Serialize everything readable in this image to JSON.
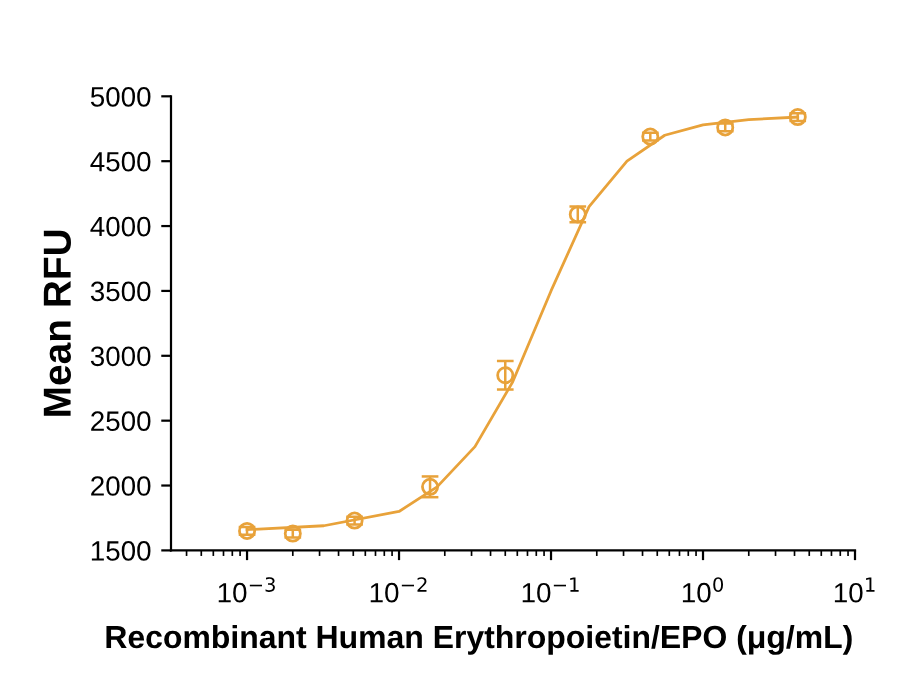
{
  "chart_data": {
    "type": "scatter",
    "xlabel": "Recombinant Human Erythropoietin/EPO (μg/mL)",
    "ylabel": "Mean RFU",
    "log": "x",
    "xlim": [
      0.000316,
      10
    ],
    "ylim": [
      1500,
      5000
    ],
    "xticks": [
      {
        "value": 0.001,
        "label": "10$^{−3}$"
      },
      {
        "value": 0.01,
        "label": "10$^{−2}$"
      },
      {
        "value": 0.1,
        "label": "10$^{−1}$"
      },
      {
        "value": 1,
        "label": "10$^{0}$"
      },
      {
        "value": 10,
        "label": "10$^{1}$"
      }
    ],
    "yticks": [
      1500,
      2000,
      2500,
      3000,
      3500,
      4000,
      4500,
      5000
    ],
    "grid": false,
    "series": [
      {
        "color": "#e8a23a",
        "marker": "circle",
        "x": [
          0.001,
          0.002,
          0.0051,
          0.016,
          0.05,
          0.15,
          0.45,
          1.4,
          4.2
        ],
        "values": [
          1650,
          1630,
          1730,
          1990,
          2850,
          4090,
          4690,
          4760,
          4840
        ],
        "errors": [
          30,
          30,
          30,
          80,
          110,
          60,
          30,
          30,
          30
        ]
      },
      {
        "type": "line",
        "color": "#e8a23a",
        "marker": "none",
        "line_style": "solid",
        "x": [
          0.001,
          0.0032,
          0.01,
          0.0178,
          0.0316,
          0.056,
          0.1,
          0.178,
          0.316,
          0.56,
          1,
          2,
          4.2
        ],
        "values": [
          1660,
          1690,
          1800,
          1990,
          2300,
          2800,
          3500,
          4150,
          4500,
          4700,
          4780,
          4820,
          4840
        ]
      }
    ]
  }
}
